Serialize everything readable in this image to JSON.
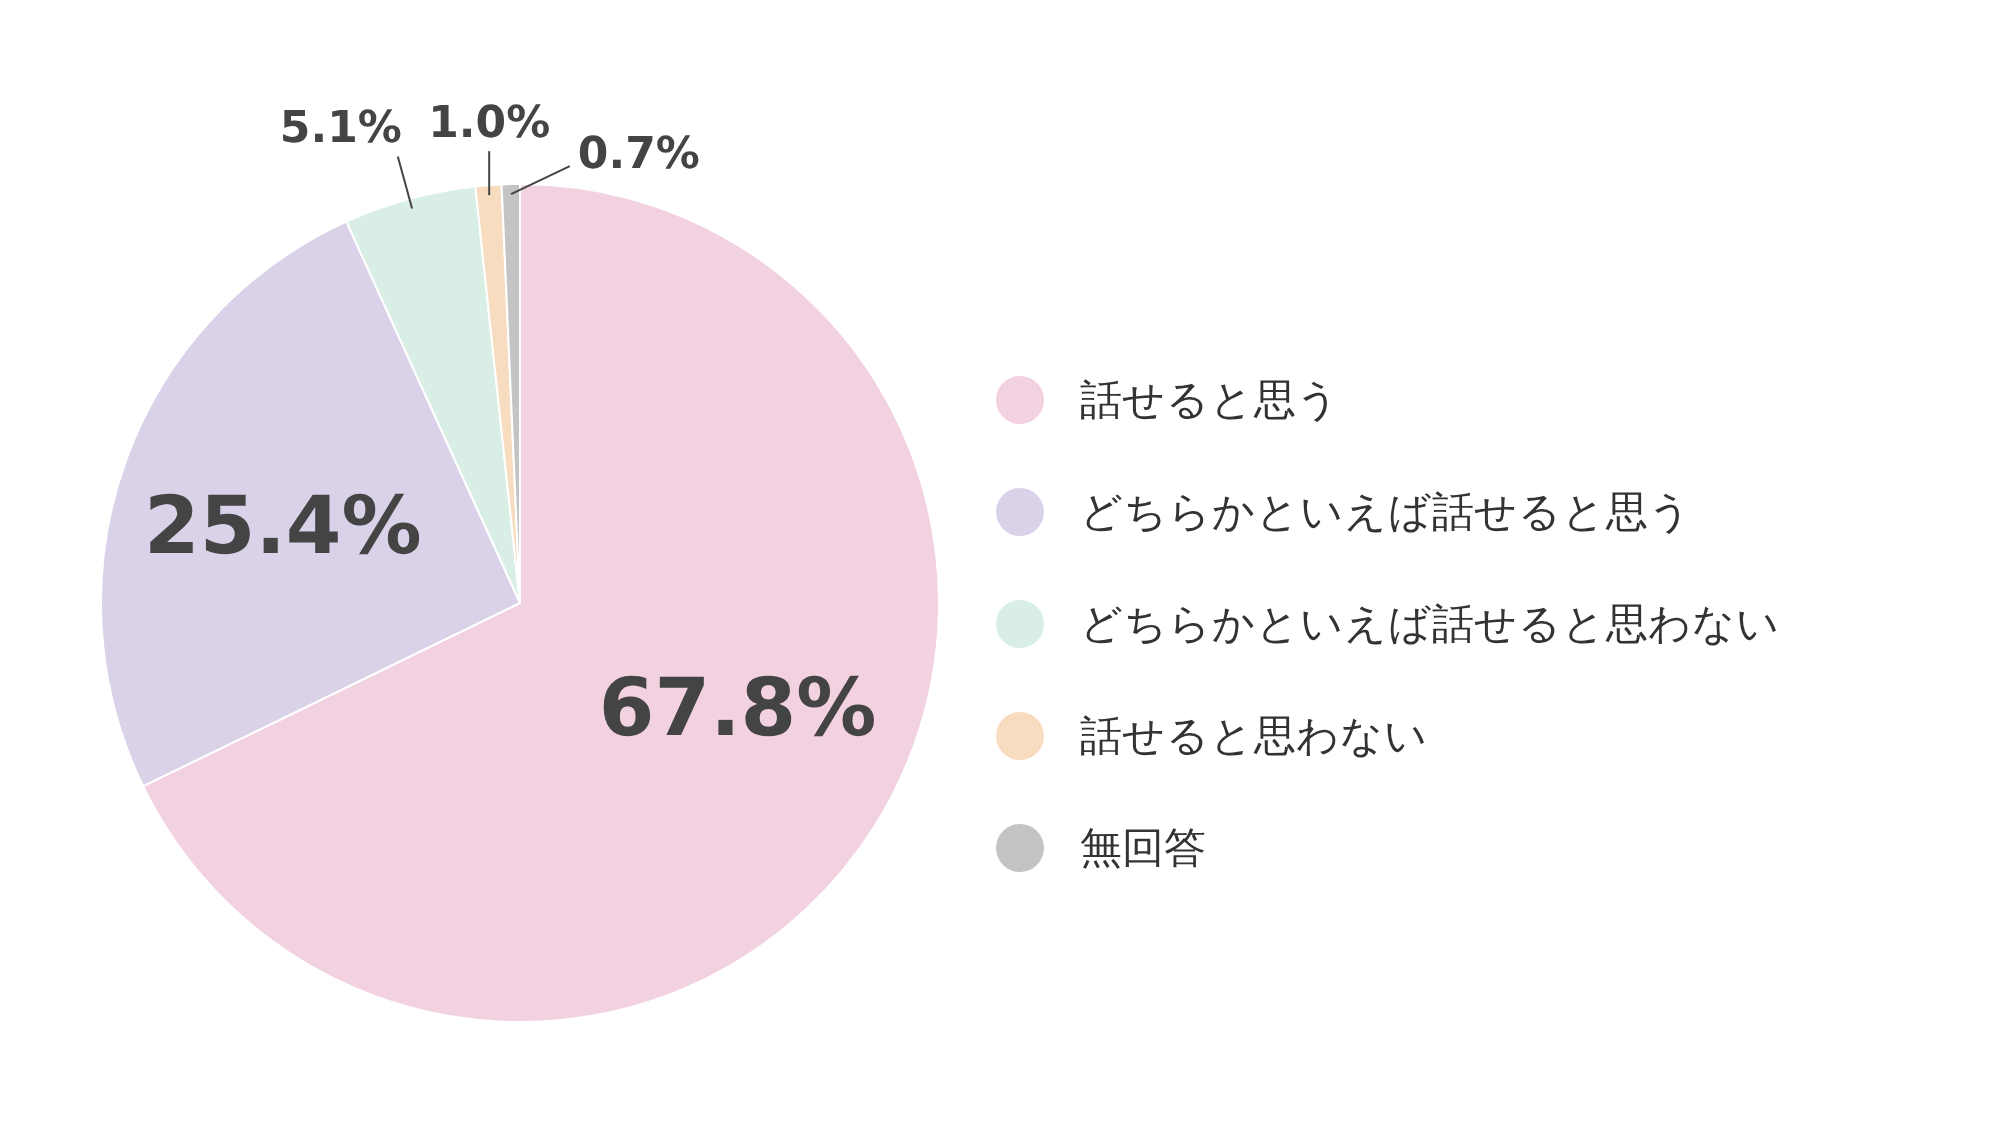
{
  "chart_data": {
    "type": "pie",
    "categories": [
      "話せると思う",
      "どちらかといえば話せると思う",
      "どちらかといえば話せると思わない",
      "話せると思わない",
      "無回答"
    ],
    "values": [
      67.8,
      25.4,
      5.1,
      1.0,
      0.7
    ],
    "colors": [
      "#f2d1e1",
      "#dad2e9",
      "#d9efe6",
      "#f7dcc0",
      "#c4c4c4"
    ],
    "value_labels": [
      "67.8%",
      "25.4%",
      "5.1%",
      "1.0%",
      "0.7%"
    ],
    "legend": "right"
  }
}
